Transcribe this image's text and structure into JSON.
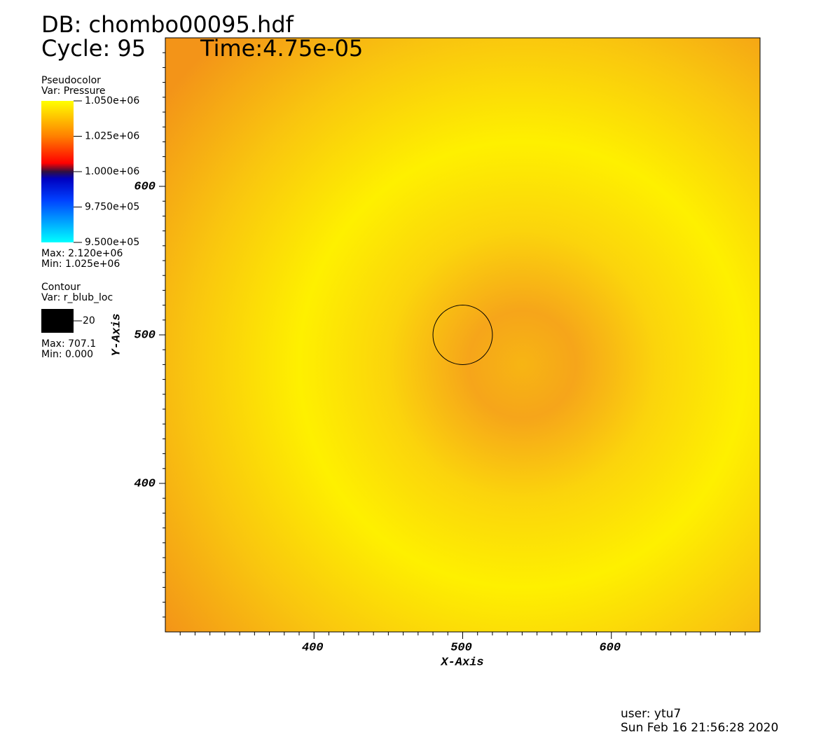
{
  "header": {
    "db": "DB: chombo00095.hdf",
    "cycle": "Cycle: 95",
    "time": "Time:4.75e-05"
  },
  "chart_data": {
    "type": "pseudocolor",
    "xlabel": "X-Axis",
    "ylabel": "Y-Axis",
    "xlim": [
      300,
      700
    ],
    "ylim": [
      300,
      700
    ],
    "xticks": [
      400,
      500,
      600
    ],
    "yticks": [
      400,
      500,
      600
    ],
    "xminorticks": [
      310,
      320,
      330,
      340,
      350,
      360,
      370,
      380,
      390,
      410,
      420,
      430,
      440,
      450,
      460,
      470,
      480,
      490,
      510,
      520,
      530,
      540,
      550,
      560,
      570,
      580,
      590,
      610,
      620,
      630,
      640,
      650,
      660,
      670,
      680,
      690
    ],
    "yminorticks": [
      310,
      320,
      330,
      340,
      350,
      360,
      370,
      380,
      390,
      410,
      420,
      430,
      440,
      450,
      460,
      470,
      480,
      490,
      510,
      520,
      530,
      540,
      550,
      560,
      570,
      580,
      590,
      610,
      620,
      630,
      640,
      650,
      660,
      670,
      680,
      690
    ]
  },
  "legend": {
    "pseudocolor": {
      "title": "Pseudocolor",
      "var": "Var: Pressure",
      "range": [
        950000,
        1050000
      ],
      "ticks": [
        {
          "value": 1050000,
          "label": "1.050e+06"
        },
        {
          "value": 1025000,
          "label": "1.025e+06"
        },
        {
          "value": 1000000,
          "label": "1.000e+06"
        },
        {
          "value": 975000,
          "label": "9.750e+05"
        },
        {
          "value": 950000,
          "label": "9.500e+05"
        }
      ],
      "max": "Max: 2.120e+06",
      "min": "Min:  1.025e+06"
    },
    "contour": {
      "title": "Contour",
      "var": "Var: r_blub_loc",
      "level": 20,
      "max": "Max: 707.1",
      "min": "Min: 0.000"
    }
  },
  "footer": {
    "user": "user: ytu7",
    "date": "Sun Feb 16 21:56:28 2020"
  }
}
